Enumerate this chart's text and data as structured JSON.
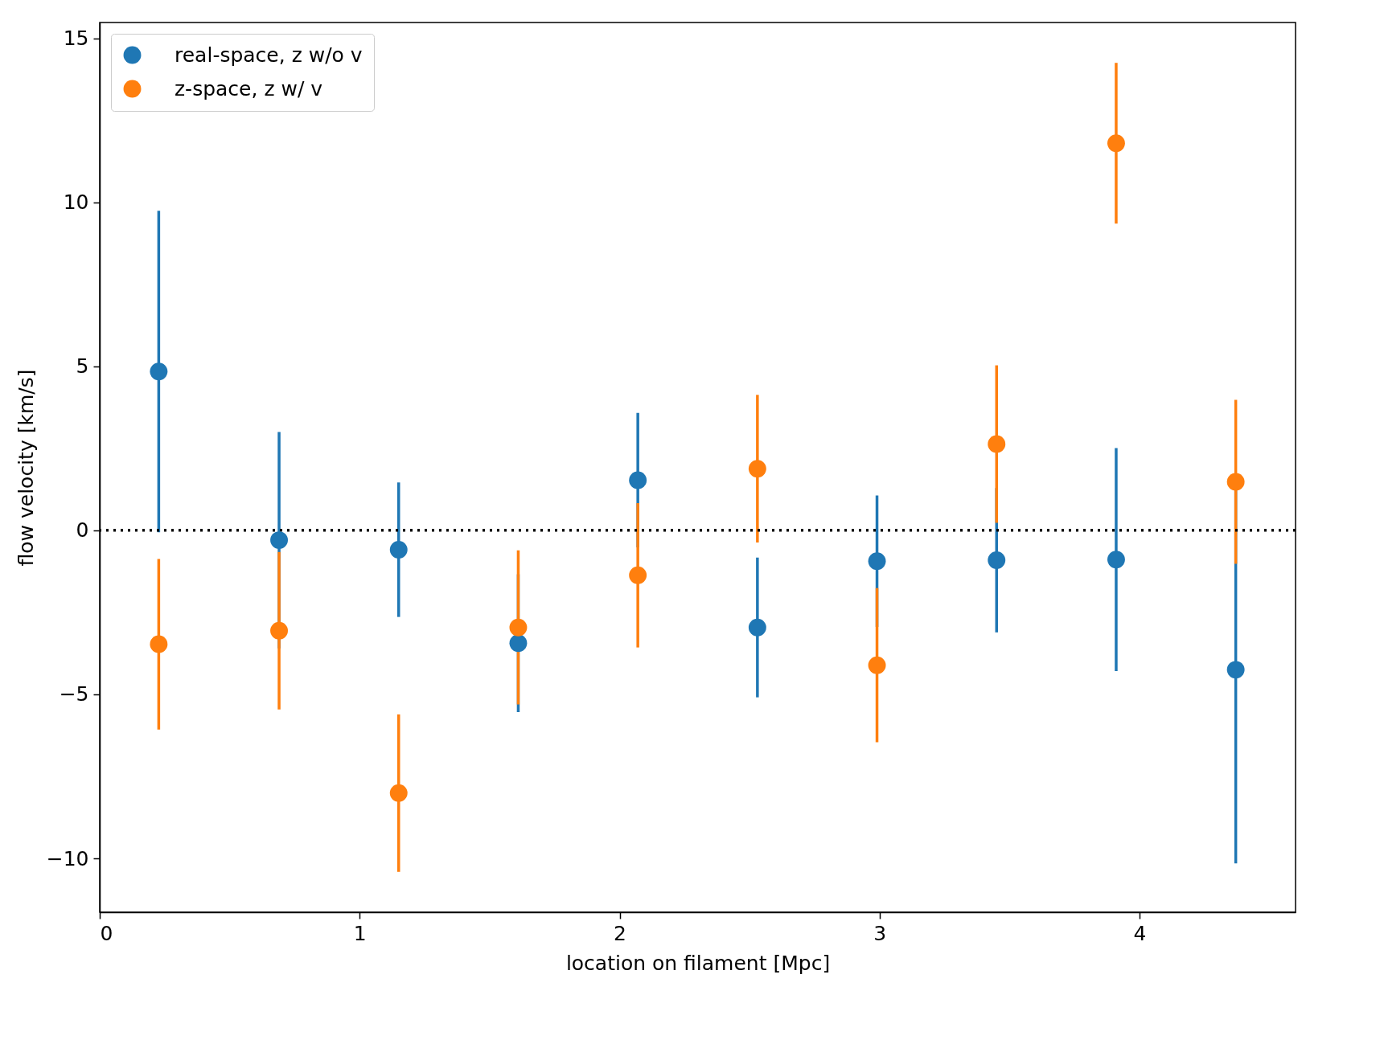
{
  "chart_data": {
    "type": "scatter",
    "xlabel": "location on filament [Mpc]",
    "ylabel": "flow velocity [km/s]",
    "xlim": [
      0,
      4.6
    ],
    "ylim": [
      -11.64,
      15.48
    ],
    "xticks": [
      0,
      1,
      2,
      3,
      4
    ],
    "yticks": [
      {
        "value": -10,
        "label": "−10"
      },
      {
        "value": -5,
        "label": "−5"
      },
      0,
      5,
      10,
      15
    ],
    "grid": false,
    "legend": "top left",
    "marker": "circle",
    "ref_lines": [
      {
        "axis": "y",
        "value": 0,
        "color": "#000000",
        "line_style": "dotted"
      }
    ],
    "series": [
      {
        "name": "real-space, z w/o v",
        "color": "#1f77b4",
        "x": [
          0.227,
          0.69,
          1.15,
          1.61,
          2.07,
          2.53,
          2.99,
          3.45,
          3.91,
          4.37
        ],
        "values": [
          4.84,
          -0.3,
          -0.59,
          -3.44,
          1.53,
          -2.96,
          -0.94,
          -0.91,
          -0.89,
          -4.25
        ],
        "errors": [
          4.9,
          3.3,
          2.05,
          2.1,
          2.05,
          2.13,
          2.0,
          2.2,
          3.4,
          5.9
        ]
      },
      {
        "name": "z-space, z w/ v",
        "color": "#ff7f0e",
        "x": [
          0.227,
          0.69,
          1.15,
          1.61,
          2.07,
          2.53,
          2.99,
          3.45,
          3.91,
          4.37
        ],
        "values": [
          -3.47,
          -3.06,
          -8.01,
          -2.96,
          -1.37,
          1.88,
          -4.11,
          2.63,
          11.8,
          1.48
        ],
        "errors": [
          2.6,
          2.4,
          2.4,
          2.35,
          2.2,
          2.25,
          2.35,
          2.4,
          2.45,
          2.5
        ]
      }
    ]
  }
}
